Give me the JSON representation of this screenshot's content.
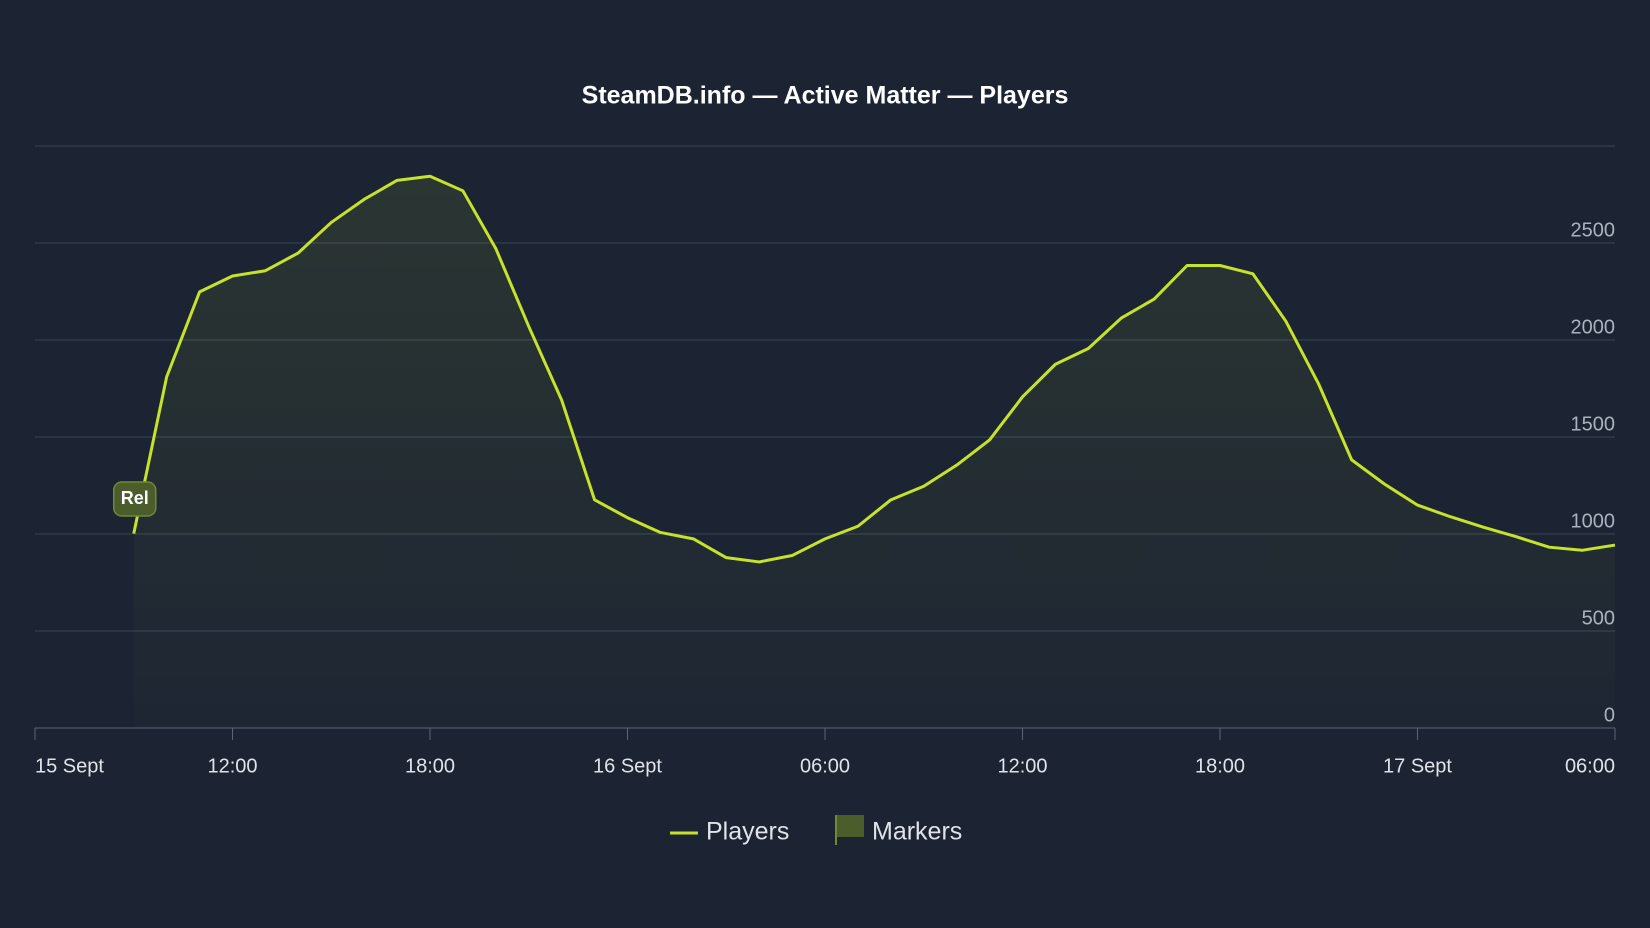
{
  "chart_data": {
    "type": "line",
    "title": "SteamDB.info — Active Matter — Players",
    "x": [
      9,
      10,
      11,
      12,
      13,
      14,
      15,
      16,
      17,
      18,
      19,
      20,
      21,
      22,
      23,
      24,
      25,
      26,
      27,
      28,
      29,
      30,
      31,
      32,
      33,
      34,
      35,
      36,
      37,
      38,
      39,
      40,
      41,
      42,
      43,
      44,
      45,
      46,
      47,
      48,
      49,
      50,
      51,
      52,
      53,
      54
    ],
    "series": [
      {
        "name": "Players",
        "color": "#c4e32a",
        "values": [
          1002,
          1810,
          2248,
          2330,
          2357,
          2449,
          2606,
          2725,
          2823,
          2844,
          2769,
          2471,
          2070,
          1690,
          1176,
          1084,
          1008,
          975,
          878,
          856,
          889,
          975,
          1040,
          1176,
          1246,
          1355,
          1485,
          1707,
          1875,
          1956,
          2113,
          2211,
          2384,
          2384,
          2341,
          2097,
          1772,
          1382,
          1257,
          1149,
          1089,
          1035,
          986,
          932,
          916,
          943
        ]
      }
    ],
    "markers": [
      {
        "x": 9,
        "label": "Rel"
      }
    ],
    "marker_legend": "Markers",
    "xlim": [
      6,
      54
    ],
    "xticks": [
      {
        "value": 6,
        "label": "15 Sept"
      },
      {
        "value": 12,
        "label": "12:00"
      },
      {
        "value": 18,
        "label": "18:00"
      },
      {
        "value": 24,
        "label": "16 Sept"
      },
      {
        "value": 30,
        "label": "06:00"
      },
      {
        "value": 36,
        "label": "12:00"
      },
      {
        "value": 42,
        "label": "18:00"
      },
      {
        "value": 48,
        "label": "17 Sept"
      },
      {
        "value": 54,
        "label": "06:00"
      }
    ],
    "ylim": [
      0,
      3000
    ],
    "yticks": [
      0,
      500,
      1000,
      1500,
      2000,
      2500
    ],
    "grid": true
  }
}
